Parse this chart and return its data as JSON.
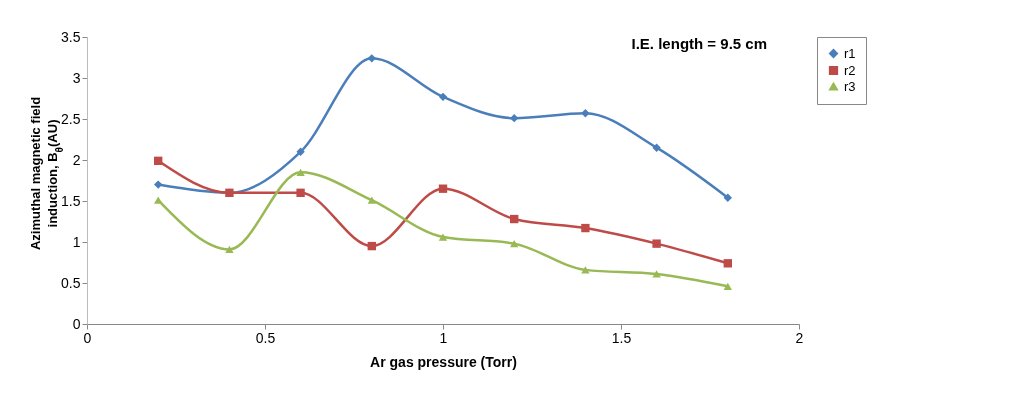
{
  "chart_data": {
    "type": "line",
    "xlabel": "Ar gas pressure (Torr)",
    "ylabel": "Azimuthal magnetic field induction, B$_{θ}$(AU)",
    "annotations": [
      "I.E. length = 9.5 cm"
    ],
    "x": [
      0.2,
      0.4,
      0.6,
      0.8,
      1.0,
      1.2,
      1.4,
      1.6,
      1.8
    ],
    "series": [
      {
        "name": "r1",
        "color": "#4a7ebb",
        "marker": "diamond",
        "values": [
          1.7,
          1.6,
          2.1,
          3.24,
          2.77,
          2.51,
          2.57,
          2.15,
          1.54
        ]
      },
      {
        "name": "r2",
        "color": "#be4b48",
        "marker": "square",
        "values": [
          1.99,
          1.6,
          1.6,
          0.95,
          1.65,
          1.28,
          1.17,
          0.98,
          0.74
        ]
      },
      {
        "name": "r3",
        "color": "#98b954",
        "marker": "triangle",
        "values": [
          1.51,
          0.91,
          1.85,
          1.51,
          1.06,
          0.98,
          0.66,
          0.61,
          0.46
        ]
      }
    ],
    "xlim": [
      0,
      2
    ],
    "xticks": [
      0,
      0.5,
      1,
      1.5,
      2
    ],
    "ylim": [
      0,
      3.5
    ],
    "yticks": [
      0,
      0.5,
      1,
      1.5,
      2,
      2.5,
      3,
      3.5
    ],
    "grid": false,
    "legend": "right"
  }
}
